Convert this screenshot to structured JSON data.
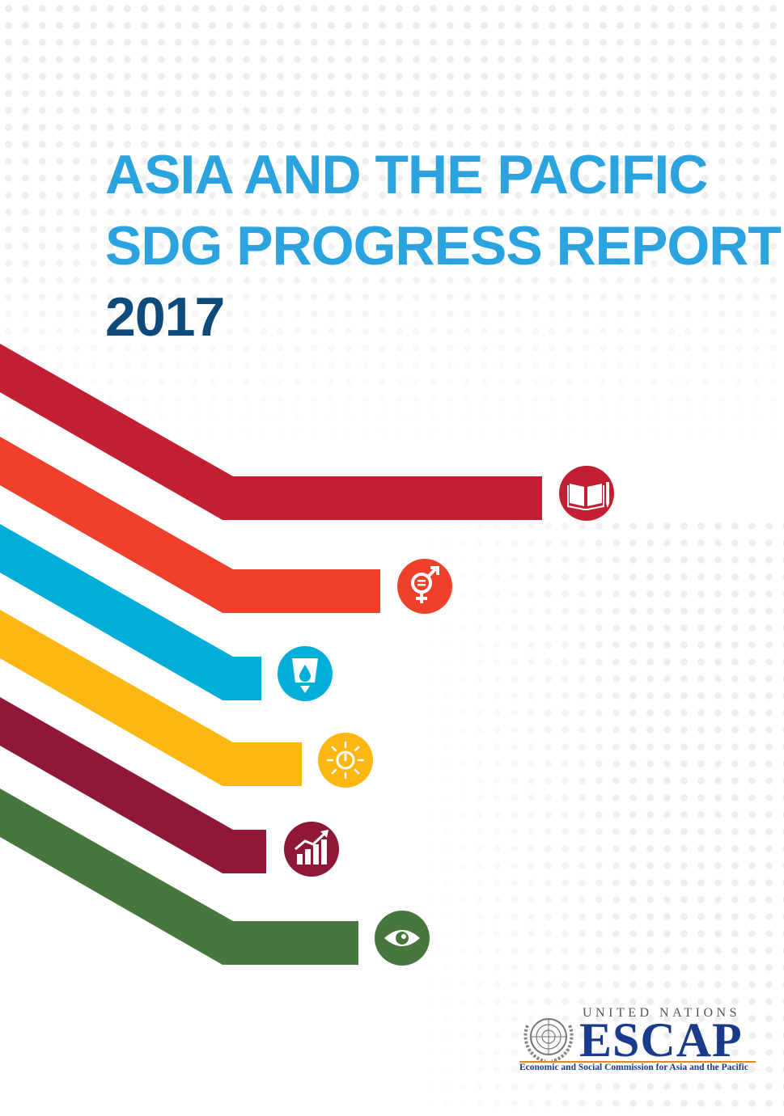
{
  "cover": {
    "title_line1": "ASIA AND THE PACIFIC",
    "title_line2": "SDG PROGRESS REPORT",
    "year": "2017"
  },
  "goals": [
    {
      "icon": "book-pencil-icon",
      "color": "#c31f33"
    },
    {
      "icon": "gender-equality-icon",
      "color": "#ef402b"
    },
    {
      "icon": "water-drop-icon",
      "color": "#00aed9"
    },
    {
      "icon": "power-sun-icon",
      "color": "#fdb713"
    },
    {
      "icon": "growth-chart-icon",
      "color": "#8f1838"
    },
    {
      "icon": "eye-globe-icon",
      "color": "#48773e"
    }
  ],
  "publisher": {
    "org_line": "UNITED NATIONS",
    "acronym": "ESCAP",
    "full_name": "Economic and Social Commission for Asia and the Pacific",
    "accent": "#1a3a8c",
    "rule_color": "#e0882b"
  }
}
